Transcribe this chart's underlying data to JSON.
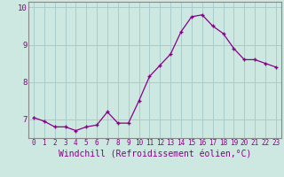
{
  "x": [
    0,
    1,
    2,
    3,
    4,
    5,
    6,
    7,
    8,
    9,
    10,
    11,
    12,
    13,
    14,
    15,
    16,
    17,
    18,
    19,
    20,
    21,
    22,
    23
  ],
  "y": [
    7.05,
    6.95,
    6.8,
    6.8,
    6.7,
    6.8,
    6.85,
    7.2,
    6.9,
    6.9,
    7.5,
    8.15,
    8.45,
    8.75,
    9.35,
    9.75,
    9.8,
    9.5,
    9.3,
    8.9,
    8.6,
    8.6,
    8.5,
    8.4
  ],
  "line_color": "#880088",
  "marker": "+",
  "bg_color": "#cce8e0",
  "grid_color": "#aacccc",
  "xlabel": "Windchill (Refroidissement éolien,°C)",
  "ylim": [
    6.5,
    10.15
  ],
  "xlim": [
    -0.5,
    23.5
  ],
  "yticks": [
    7,
    8,
    9,
    10
  ],
  "xtick_labels": [
    "0",
    "1",
    "2",
    "3",
    "4",
    "5",
    "6",
    "7",
    "8",
    "9",
    "10",
    "11",
    "12",
    "13",
    "14",
    "15",
    "16",
    "17",
    "18",
    "19",
    "20",
    "21",
    "22",
    "23"
  ],
  "tick_fontsize": 5.5,
  "xlabel_fontsize": 7.0
}
